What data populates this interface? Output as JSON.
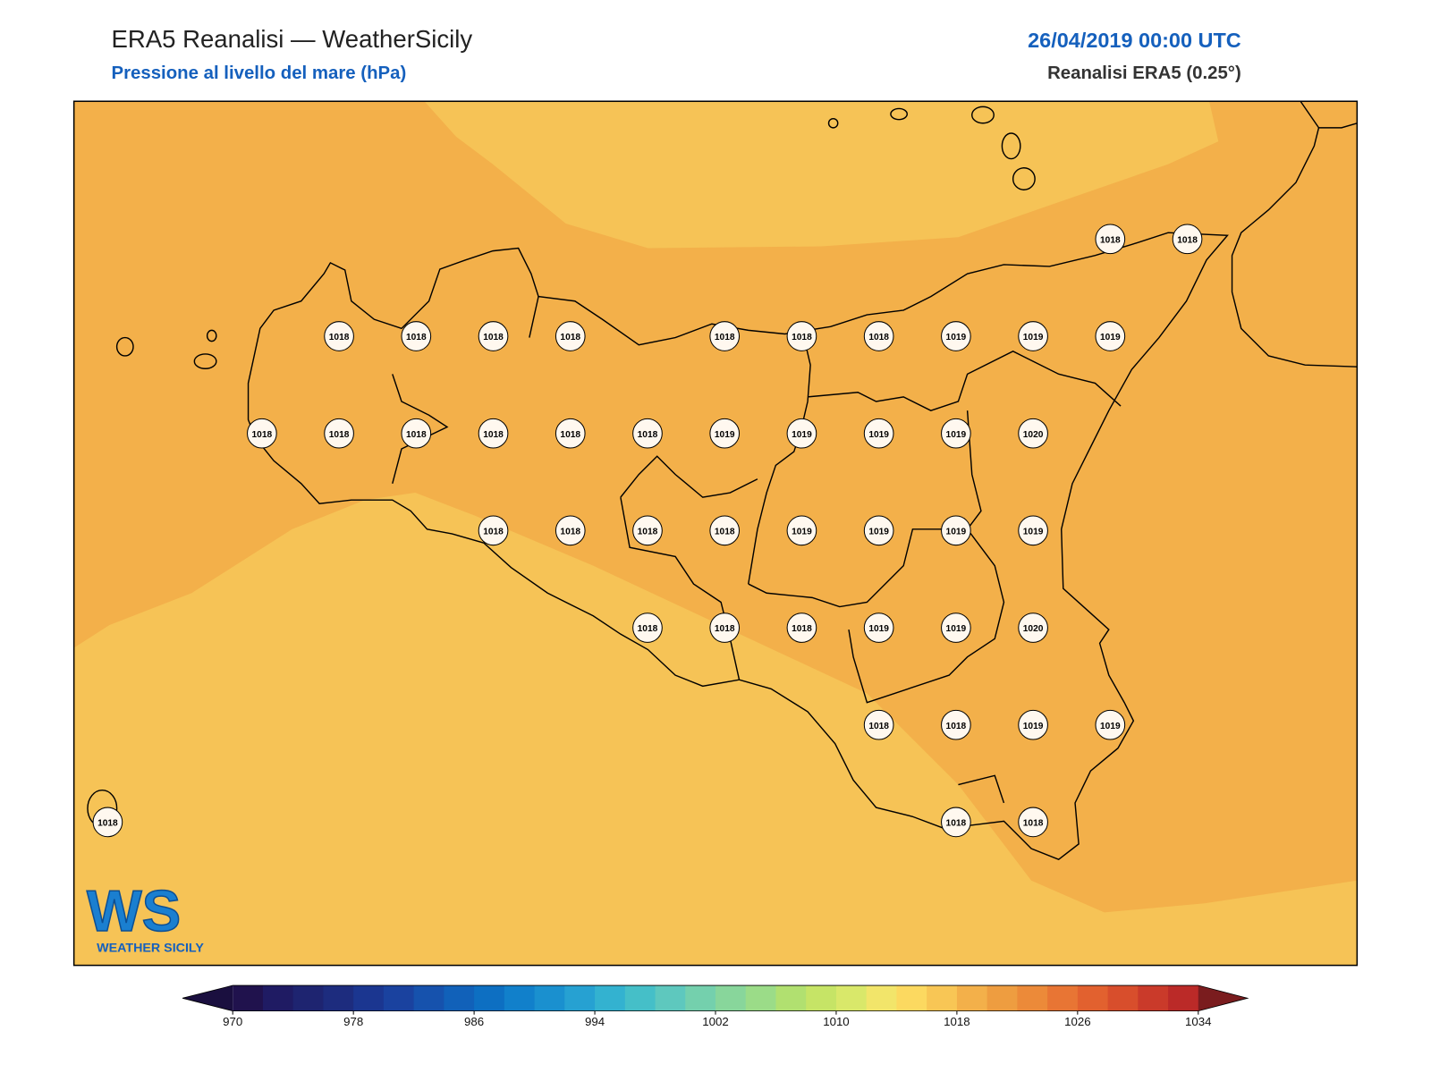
{
  "header": {
    "title": "ERA5 Reanalisi — WeatherSicily",
    "subtitle": "Pressione al livello del mare (hPa)",
    "datetime": "26/04/2019 00:00 UTC",
    "source": "Reanalisi ERA5 (0.25°)"
  },
  "stations": [
    [
      1018,
      1018
    ],
    [
      1018,
      1018,
      1018,
      1018,
      1018,
      1018,
      1018,
      1019,
      1019,
      1019
    ],
    [
      1018,
      1018,
      1018,
      1018,
      1018,
      1018,
      1019,
      1019,
      1019,
      1019,
      1020
    ],
    [
      1018,
      1018,
      1018,
      1018,
      1019,
      1019,
      1019,
      1019
    ],
    [
      1018,
      1018,
      1018,
      1019,
      1019,
      1020
    ],
    [
      1018,
      1018,
      1019,
      1019
    ],
    [
      1018,
      1018,
      1018
    ]
  ],
  "colorbar": {
    "lim": [
      970,
      1034
    ],
    "ticks": [
      970,
      978,
      986,
      994,
      1002,
      1010,
      1018,
      1026,
      1034
    ],
    "under": "#1a0f3f",
    "over": "#7a1c1e",
    "colors": [
      "#20124d",
      "#1f1b63",
      "#1e2470",
      "#1d2c7e",
      "#1b3690",
      "#1a429f",
      "#1652ad",
      "#1161b9",
      "#0d6fc2",
      "#1180cb",
      "#1a90cf",
      "#26a1d2",
      "#33b2d0",
      "#45bfc8",
      "#5ec8be",
      "#74d0ad",
      "#88d69b",
      "#9bdc88",
      "#b1e070",
      "#c6e466",
      "#d9e86a",
      "#f2e56a",
      "#fcd960",
      "#f8c655",
      "#f3b04a",
      "#ee9d40",
      "#ec8a39",
      "#e87534",
      "#e2612f",
      "#d84e2c",
      "#ca3a2a",
      "#bb2a28"
    ]
  },
  "logo": {
    "mark": "WS",
    "text": "WEATHER SICILY"
  }
}
